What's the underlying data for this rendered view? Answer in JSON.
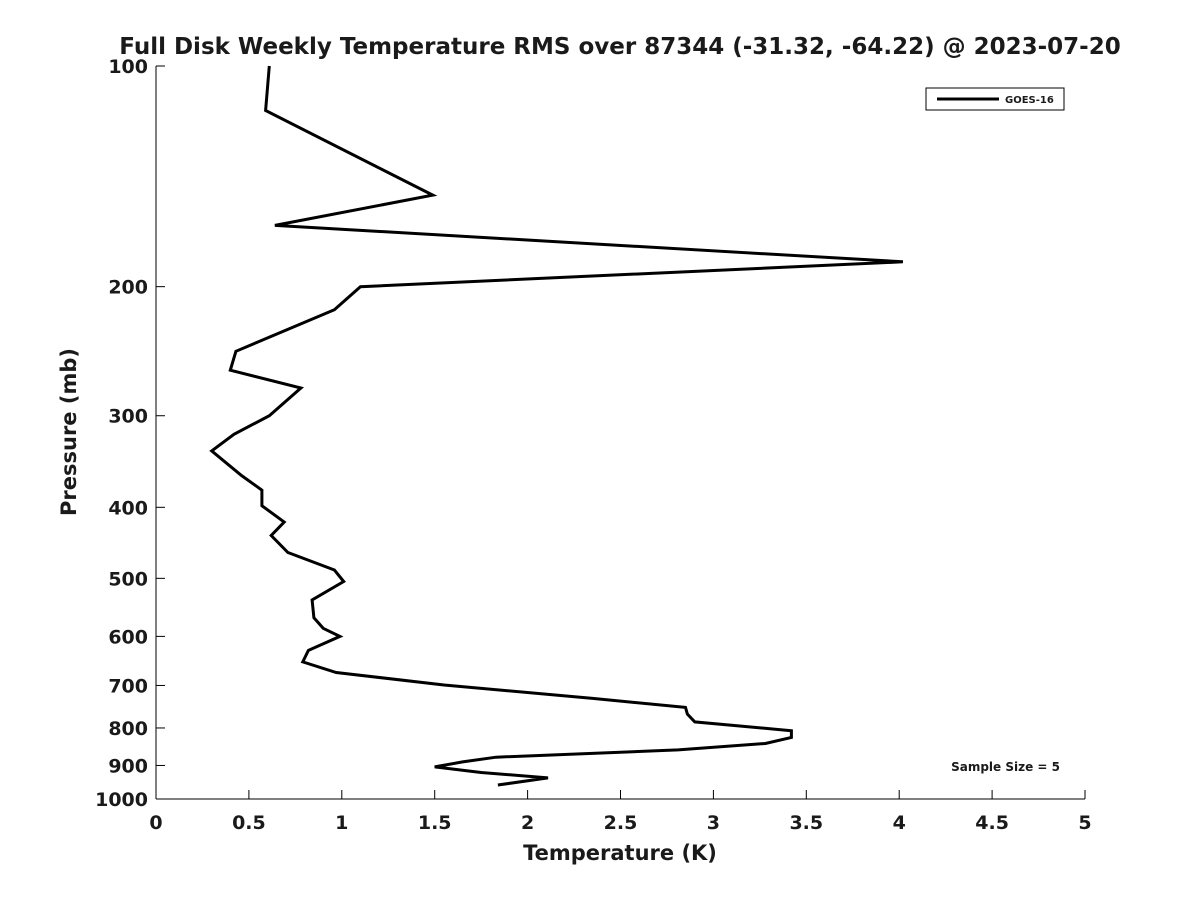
{
  "chart_data": {
    "type": "line",
    "title": "Full Disk Weekly Temperature RMS over 87344 (-31.32, -64.22) @ 2023-07-20",
    "xlabel": "Temperature (K)",
    "ylabel": "Pressure (mb)",
    "xlim": [
      0,
      5
    ],
    "ylim": [
      1000,
      100
    ],
    "y_scale": "log",
    "y_reversed": true,
    "grid": false,
    "legend_position": "top-right",
    "x_ticks": [
      0,
      0.5,
      1,
      1.5,
      2,
      2.5,
      3,
      3.5,
      4,
      4.5,
      5
    ],
    "x_tick_labels": [
      "0",
      "0.5",
      "1",
      "1.5",
      "2",
      "2.5",
      "3",
      "3.5",
      "4",
      "4.5",
      "5"
    ],
    "y_ticks": [
      100,
      200,
      300,
      400,
      500,
      600,
      700,
      800,
      900,
      1000
    ],
    "y_tick_labels": [
      "100",
      "200",
      "300",
      "400",
      "500",
      "600",
      "700",
      "800",
      "900",
      "1000"
    ],
    "series": [
      {
        "name": "GOES-16",
        "color": "#000000",
        "x": [
          0.61,
          0.59,
          1.49,
          0.64,
          4.02,
          1.1,
          0.96,
          0.43,
          0.4,
          0.78,
          0.61,
          0.42,
          0.3,
          0.46,
          0.57,
          0.57,
          0.69,
          0.62,
          0.71,
          0.96,
          1.01,
          0.84,
          0.85,
          0.9,
          0.99,
          0.82,
          0.79,
          0.97,
          1.55,
          2.35,
          2.85,
          2.86,
          2.9,
          3.42,
          3.42,
          3.28,
          2.81,
          1.83,
          1.65,
          1.5,
          1.75,
          2.11,
          1.84
        ],
        "y": [
          100,
          115,
          150,
          165,
          185,
          200,
          215,
          245,
          260,
          275,
          300,
          318,
          335,
          362,
          379,
          398,
          419,
          437,
          461,
          487,
          505,
          535,
          566,
          585,
          600,
          627,
          650,
          672,
          699,
          729,
          750,
          766,
          785,
          807,
          824,
          840,
          857,
          877,
          890,
          904,
          920,
          936,
          957
        ]
      }
    ],
    "annotations": [
      {
        "text": "Sample Size = 5",
        "position": "bottom-right"
      }
    ]
  }
}
